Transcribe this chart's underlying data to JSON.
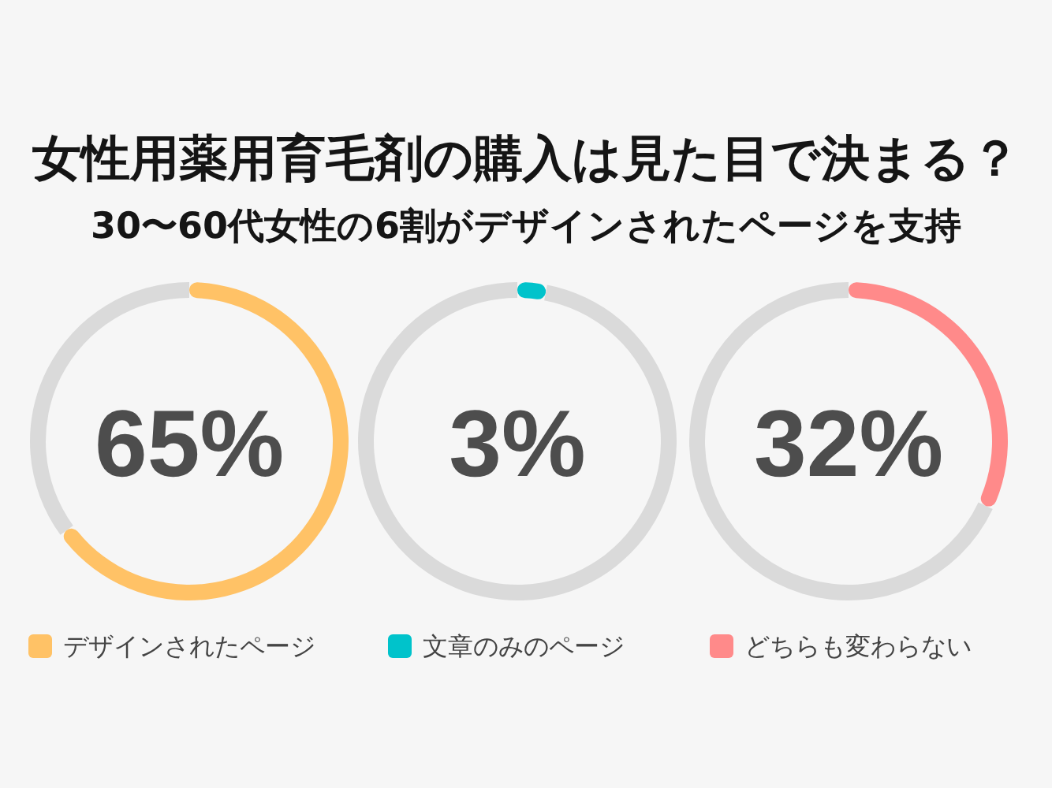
{
  "chart_data": [
    {
      "type": "donut",
      "title": "女性用薬用育毛剤の購入は見た目で決まる？",
      "subtitle": "30〜60代女性の6割がデザインされたページを支持",
      "categories": [
        "デザインされたページ",
        null
      ],
      "values": [
        65,
        35
      ],
      "colors": [
        "#ffc266",
        "#dadada"
      ],
      "annotations": [
        "65%"
      ],
      "legend": "bottom"
    },
    {
      "type": "donut",
      "categories": [
        "文章のみのページ",
        null
      ],
      "values": [
        3,
        97
      ],
      "colors": [
        "#00c3cb",
        "#dadada"
      ],
      "annotations": [
        "3%"
      ],
      "legend": "bottom"
    },
    {
      "type": "donut",
      "categories": [
        "どちらも変わらない",
        null
      ],
      "values": [
        32,
        68
      ],
      "colors": [
        "#ff8a8a",
        "#dadada"
      ],
      "annotations": [
        "32%"
      ],
      "legend": "bottom"
    }
  ]
}
